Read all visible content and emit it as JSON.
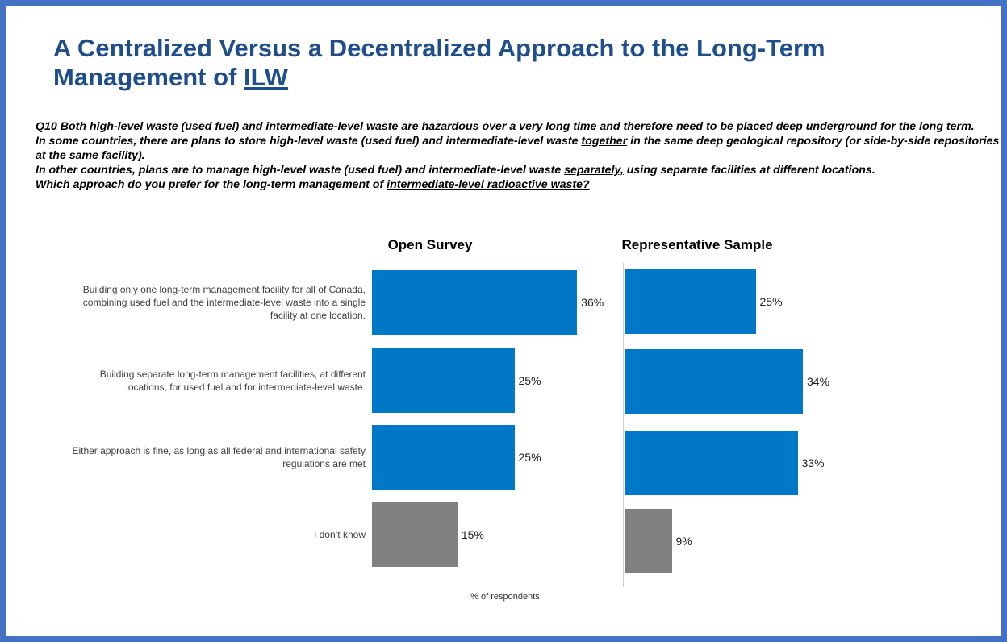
{
  "title": [
    "A Centralized Versus a Decentralized Approach to the Long-Term Management of ",
    "ILW"
  ],
  "question": [
    [
      "Q10 Both high-level waste (used fuel) and intermediate-level waste are hazardous over a very long time and therefore need to be placed deep underground for the long term."
    ],
    [
      "In some countries, there are plans to store high-level waste (used fuel) and intermediate-level waste ",
      "together",
      " in the same deep geological repository (or side-by-side repositories at the same facility)."
    ],
    [
      "In other countries, plans are to manage high-level waste (used fuel) and intermediate-level waste ",
      "separately,",
      " using separate facilities at different locations."
    ],
    [
      "Which approach do you prefer for the long-term management of ",
      "intermediate-level radioactive waste?"
    ]
  ],
  "chart_data": [
    {
      "type": "bar",
      "orientation": "horizontal",
      "title": "Open Survey",
      "categories": [
        "Building only one long-term management facility for all of Canada, combining used fuel and the intermediate-level waste into a single facility at one location.",
        "Building separate long-term management facilities, at different locations, for used fuel and for intermediate-level waste.",
        "Either approach is fine, as long as all federal and international safety regulations are met",
        "I don’t know"
      ],
      "values": [
        36,
        25,
        25,
        15
      ],
      "value_labels": [
        "36%",
        "25%",
        "25%",
        "15%"
      ],
      "colors": [
        "#0078c8",
        "#0078c8",
        "#0078c8",
        "#808080"
      ],
      "xlim": [
        0,
        40
      ],
      "xlabel": "% of respondents"
    },
    {
      "type": "bar",
      "orientation": "horizontal",
      "title": "Representative Sample",
      "values": [
        25,
        34,
        33,
        9
      ],
      "value_labels": [
        "25%",
        "34%",
        "33%",
        "9%"
      ],
      "colors": [
        "#0078c8",
        "#0078c8",
        "#0078c8",
        "#808080"
      ],
      "xlim": [
        0,
        40
      ]
    }
  ]
}
